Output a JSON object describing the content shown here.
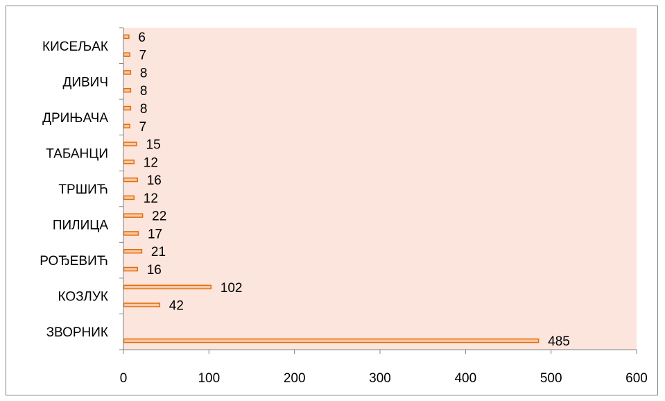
{
  "chart_data": {
    "type": "bar",
    "orientation": "horizontal",
    "categories": [
      "ЗВОРНИК",
      "КОЗЛУК",
      "РОЂЕВИЋ",
      "ПИЛИЦА",
      "ТРШИЋ",
      "ТАБАНЦИ",
      "ДРИЊАЧА",
      "ДИВИЧ",
      "КИСЕЉАК"
    ],
    "series": [
      {
        "values": [
          485,
          42,
          16,
          17,
          12,
          12,
          7,
          8,
          7
        ]
      },
      {
        "values": [
          0,
          102,
          21,
          22,
          16,
          15,
          8,
          8,
          6
        ]
      }
    ],
    "xlim": [
      0,
      600
    ],
    "xticks": [
      0,
      100,
      200,
      300,
      400,
      500,
      600
    ],
    "title": "",
    "xlabel": "",
    "ylabel": "",
    "grid": false,
    "legend": "none"
  },
  "colors": {
    "plot_background": "#fbe5dc",
    "bar_fill": "#f6c9a6",
    "bar_stroke": "#e46c0a",
    "axis": "#808080"
  }
}
